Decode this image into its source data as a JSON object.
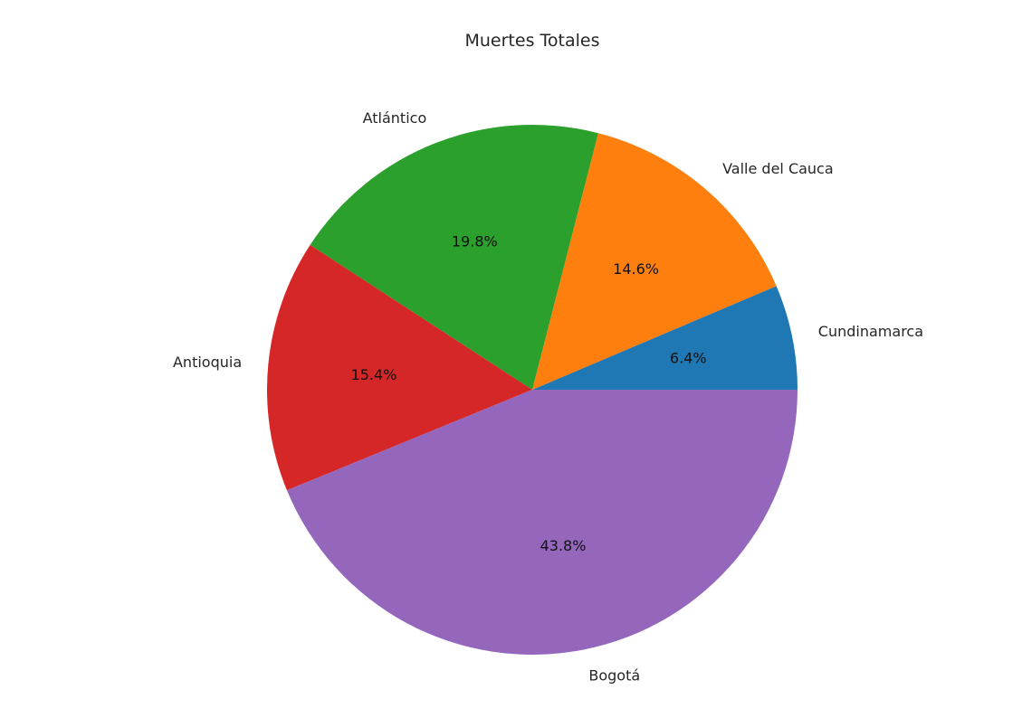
{
  "chart_data": {
    "type": "pie",
    "title": "Muertes Totales",
    "categories": [
      "Cundinamarca",
      "Valle del Cauca",
      "Atlántico",
      "Antioquia",
      "Bogotá"
    ],
    "values": [
      6.4,
      14.6,
      19.8,
      15.4,
      43.8
    ],
    "percent_labels": [
      "6.4%",
      "14.6%",
      "19.8%",
      "15.4%",
      "43.8%"
    ],
    "colors": [
      "#1f77b4",
      "#ff7f0e",
      "#2ca02c",
      "#d62728",
      "#9467bd"
    ],
    "start_angle_deg": 0,
    "direction": "counterclockwise",
    "legend": "none"
  }
}
